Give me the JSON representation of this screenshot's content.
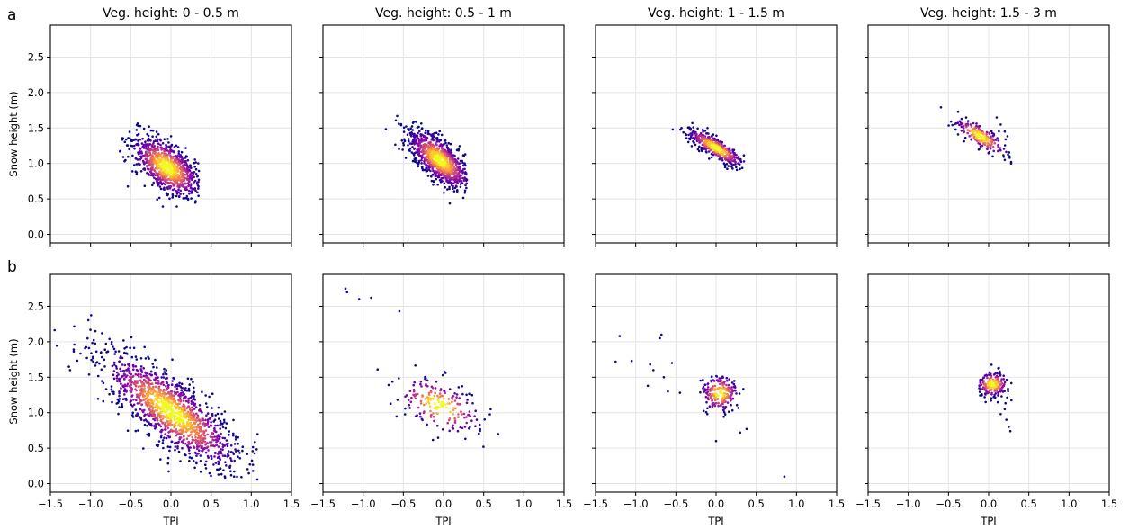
{
  "figure": {
    "panel_letters": [
      "a",
      "b"
    ],
    "column_titles": [
      "Veg. height: 0 - 0.5 m",
      "Veg. height: 0.5 - 1 m",
      "Veg. height: 1 - 1.5 m",
      "Veg. height: 1.5 - 3 m"
    ],
    "ylabel": "Snow height (m)",
    "xlabel": "TPI"
  },
  "chart_data": {
    "type": "scatter",
    "colormap": "plasma (density-colored points)",
    "xlim": [
      -1.5,
      1.5
    ],
    "ylim": [
      -0.12,
      2.95
    ],
    "xticks": [
      "−1.5",
      "−1.0",
      "−0.5",
      "0.0",
      "0.5",
      "1.0",
      "1.5"
    ],
    "yticks": [
      "0.0",
      "0.5",
      "1.0",
      "1.5",
      "2.0",
      "2.5"
    ],
    "grid": true,
    "panels": [
      {
        "row": "a",
        "title": "Veg. height: 0 - 0.5 m",
        "clusters": [
          {
            "cx": -0.05,
            "cy": 0.95,
            "slope": -1.05,
            "sd_main": 0.27,
            "sd_perp": 0.14,
            "xmin": -0.65,
            "xmax": 0.35,
            "ymin": 0.38,
            "ymax": 1.82
          }
        ],
        "outliers": [],
        "center_color": "#fde725"
      },
      {
        "row": "a",
        "title": "Veg. height: 0.5 - 1 m",
        "clusters": [
          {
            "cx": -0.05,
            "cy": 1.05,
            "slope": -1.1,
            "sd_main": 0.26,
            "sd_perp": 0.11,
            "xmin": -0.75,
            "xmax": 0.3,
            "ymin": 0.4,
            "ymax": 1.9
          }
        ],
        "outliers": [],
        "center_color": "#fde725"
      },
      {
        "row": "a",
        "title": "Veg. height: 1 - 1.5 m",
        "clusters": [
          {
            "cx": 0.0,
            "cy": 1.22,
            "slope": -0.72,
            "sd_main": 0.22,
            "sd_perp": 0.06,
            "xmin": -0.85,
            "xmax": 0.35,
            "ymin": 0.8,
            "ymax": 1.95
          }
        ],
        "outliers": [],
        "center_color": "#fde725"
      },
      {
        "row": "a",
        "title": "Veg. height: 1.5 - 3 m",
        "clusters": [
          {
            "cx": -0.1,
            "cy": 1.38,
            "slope": -0.75,
            "sd_main": 0.2,
            "sd_perp": 0.07,
            "xmin": -1.0,
            "xmax": 0.3,
            "ymin": 1.0,
            "ymax": 2.1
          }
        ],
        "outliers": [
          [
            0.1,
            1.65
          ],
          [
            0.15,
            1.55
          ],
          [
            0.2,
            1.45
          ],
          [
            0.05,
            1.1
          ],
          [
            0.2,
            1.05
          ],
          [
            0.28,
            1.0
          ]
        ],
        "center_color": "#fca636"
      },
      {
        "row": "b",
        "title": "",
        "clusters": [
          {
            "cx": 0.0,
            "cy": 1.02,
            "slope": -0.95,
            "sd_main": 0.55,
            "sd_perp": 0.18,
            "xmin": -1.5,
            "xmax": 1.15,
            "ymin": 0.02,
            "ymax": 2.85
          }
        ],
        "outliers": [],
        "center_color": "#fde725"
      },
      {
        "row": "b",
        "title": "",
        "clusters": [
          {
            "cx": -0.05,
            "cy": 1.1,
            "slope": -0.6,
            "sd_main": 0.3,
            "sd_perp": 0.16,
            "xmin": -1.35,
            "xmax": 0.75,
            "ymin": 0.3,
            "ymax": 2.8
          }
        ],
        "outliers": [
          [
            -1.22,
            2.75
          ],
          [
            -1.2,
            2.7
          ],
          [
            -1.05,
            2.6
          ],
          [
            -0.9,
            2.62
          ],
          [
            -0.55,
            2.43
          ],
          [
            0.68,
            0.7
          ]
        ],
        "center_color": "#fde725"
      },
      {
        "row": "b",
        "title": "",
        "clusters": [
          {
            "cx": 0.05,
            "cy": 1.27,
            "slope": 0,
            "sd_main": 0.12,
            "sd_perp": 0.13,
            "xmin": -0.2,
            "xmax": 0.4,
            "ymin": 0.7,
            "ymax": 1.8
          }
        ],
        "outliers": [
          [
            -1.2,
            2.08
          ],
          [
            -0.68,
            2.1
          ],
          [
            -0.7,
            2.05
          ],
          [
            -1.25,
            1.72
          ],
          [
            -1.05,
            1.73
          ],
          [
            -0.82,
            1.68
          ],
          [
            -0.78,
            1.6
          ],
          [
            -0.65,
            1.5
          ],
          [
            -0.55,
            1.7
          ],
          [
            -0.6,
            1.3
          ],
          [
            -0.45,
            1.28
          ],
          [
            -0.85,
            1.38
          ],
          [
            0.0,
            0.6
          ],
          [
            0.3,
            0.72
          ],
          [
            0.38,
            0.77
          ],
          [
            0.85,
            0.1
          ]
        ],
        "center_color": "#fde725"
      },
      {
        "row": "b",
        "title": "",
        "clusters": [
          {
            "cx": 0.05,
            "cy": 1.4,
            "slope": 0,
            "sd_main": 0.1,
            "sd_perp": 0.09,
            "xmin": -0.12,
            "xmax": 0.35,
            "ymin": 0.7,
            "ymax": 1.72
          }
        ],
        "outliers": [
          [
            0.25,
            0.8
          ],
          [
            0.27,
            0.74
          ],
          [
            0.22,
            0.9
          ],
          [
            0.15,
            0.98
          ],
          [
            0.2,
            1.05
          ]
        ],
        "center_color": "#fde725"
      }
    ]
  }
}
